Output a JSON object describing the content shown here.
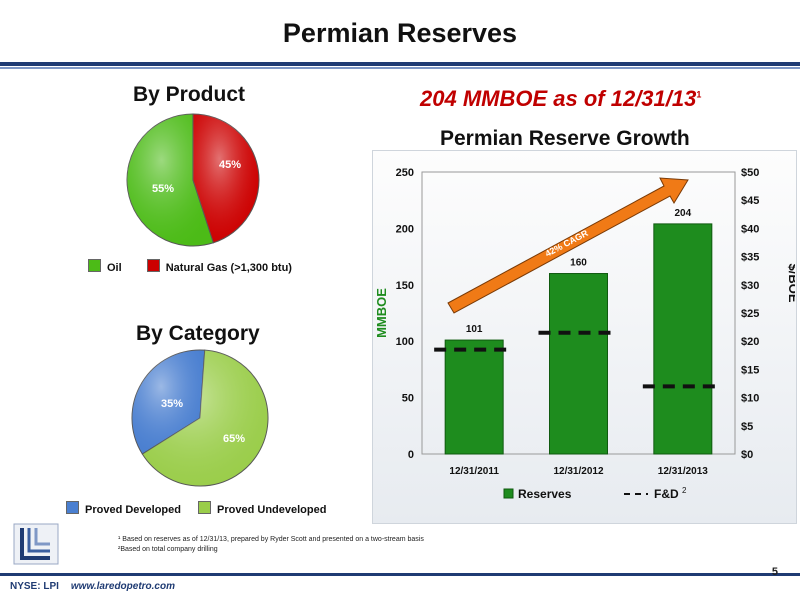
{
  "page": {
    "title": "Permian Reserves",
    "page_number": "5"
  },
  "footer": {
    "ticker": "NYSE: LPI",
    "website": "www.laredopetro.com"
  },
  "by_product": {
    "title": "By Product",
    "legend": [
      {
        "label": "Oil",
        "color": "#4cbb17"
      },
      {
        "label": "Natural Gas  (>1,300 btu)",
        "color": "#cc0000"
      }
    ]
  },
  "by_category": {
    "title": "By Category",
    "legend": [
      {
        "label": "Proved Developed",
        "color": "#4a7fd0"
      },
      {
        "label": "Proved Undeveloped",
        "color": "#9acd4a"
      }
    ]
  },
  "headline": {
    "text": "204 MMBOE as of 12/31/13",
    "superscript": "1"
  },
  "reserve_growth": {
    "arrow_label": "42% CAGR"
  },
  "footnotes": [
    "¹ Based on reserves as of 12/31/13, prepared by Ryder Scott and presented on a two-stream basis",
    "²Based on total company drilling"
  ],
  "chart_data": [
    {
      "type": "pie",
      "title": "By Product",
      "labels": [
        "Oil",
        "Natural Gas  (>1,300 btu)"
      ],
      "values": [
        55,
        45
      ],
      "value_labels": [
        "55%",
        "45%"
      ],
      "colors": [
        "#4cbb17",
        "#cc0000"
      ]
    },
    {
      "type": "pie",
      "title": "By Category",
      "labels": [
        "Proved Developed",
        "Proved Undeveloped"
      ],
      "values": [
        35,
        65
      ],
      "value_labels": [
        "35%",
        "65%"
      ],
      "colors": [
        "#4a7fd0",
        "#9acd4a"
      ]
    },
    {
      "type": "bar",
      "title": "Permian Reserve Growth",
      "categories": [
        "12/31/2011",
        "12/31/2012",
        "12/31/2013"
      ],
      "series": [
        {
          "name": "Reserves",
          "values": [
            101,
            160,
            204
          ],
          "axis": "left",
          "color": "#1e8c1e"
        },
        {
          "name": "F&D",
          "values": [
            18.5,
            21.5,
            12
          ],
          "axis": "right",
          "style": "dashed"
        }
      ],
      "legend_superscript": "2",
      "ylabel": "MMBOE",
      "ylim": [
        0,
        250
      ],
      "yticks": [
        "0",
        "50",
        "100",
        "150",
        "200",
        "250"
      ],
      "y2label": "$/BOE",
      "y2lim": [
        0,
        50
      ],
      "y2ticks": [
        "$0",
        "$5",
        "$10",
        "$15",
        "$20",
        "$25",
        "$30",
        "$35",
        "$40",
        "$45",
        "$50"
      ],
      "legend_position": "bottom"
    }
  ]
}
